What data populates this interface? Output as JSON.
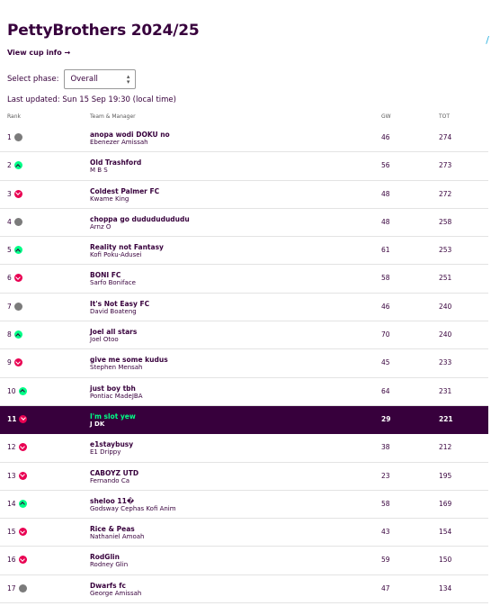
{
  "league": {
    "title": "PettyBrothers 2024/25",
    "cup_link": "View cup info →",
    "corner_mark": "/"
  },
  "phase": {
    "label": "Select phase:",
    "selected": "Overall",
    "arrows": "⌃⌄"
  },
  "last_updated": "Last updated: Sun 15 Sep 19:30 (local time)",
  "columns": {
    "rank": "Rank",
    "team": "Team & Manager",
    "gw": "GW",
    "tot": "TOT"
  },
  "colors": {
    "primary": "#37003c",
    "up": "#00ff87",
    "down": "#e90052",
    "same": "#7b7b7b"
  },
  "standings": [
    {
      "rank": "1",
      "move": "same",
      "team": "anopa wodi DOKU no",
      "manager": "Ebenezer Amissah",
      "gw": "46",
      "tot": "274",
      "highlight": false
    },
    {
      "rank": "2",
      "move": "up",
      "team": "Old Trashford",
      "manager": "M B S",
      "gw": "56",
      "tot": "273",
      "highlight": false
    },
    {
      "rank": "3",
      "move": "down",
      "team": "Coldest Palmer FC",
      "manager": "Kwame King",
      "gw": "48",
      "tot": "272",
      "highlight": false
    },
    {
      "rank": "4",
      "move": "same",
      "team": "choppa go dudududududu",
      "manager": "Arnz O",
      "gw": "48",
      "tot": "258",
      "highlight": false
    },
    {
      "rank": "5",
      "move": "up",
      "team": "Reality not Fantasy",
      "manager": "Kofi Poku-Adusei",
      "gw": "61",
      "tot": "253",
      "highlight": false
    },
    {
      "rank": "6",
      "move": "down",
      "team": "BONI FC",
      "manager": "Sarfo Boniface",
      "gw": "58",
      "tot": "251",
      "highlight": false
    },
    {
      "rank": "7",
      "move": "same",
      "team": "It's Not Easy FC",
      "manager": "David Boateng",
      "gw": "46",
      "tot": "240",
      "highlight": false
    },
    {
      "rank": "8",
      "move": "up",
      "team": "Joel all stars",
      "manager": "Joel Otoo",
      "gw": "70",
      "tot": "240",
      "highlight": false
    },
    {
      "rank": "9",
      "move": "down",
      "team": "give me some kudus",
      "manager": "Stephen Mensah",
      "gw": "45",
      "tot": "233",
      "highlight": false
    },
    {
      "rank": "10",
      "move": "up",
      "team": "just boy tbh",
      "manager": "Pontiac MadeJBA",
      "gw": "64",
      "tot": "231",
      "highlight": false
    },
    {
      "rank": "11",
      "move": "down",
      "team": "I'm slot yew",
      "manager": "J DK",
      "gw": "29",
      "tot": "221",
      "highlight": true
    },
    {
      "rank": "12",
      "move": "down",
      "team": "e1staybusy",
      "manager": "E1 Drippy",
      "gw": "38",
      "tot": "212",
      "highlight": false
    },
    {
      "rank": "13",
      "move": "down",
      "team": "CABOYZ UTD",
      "manager": "Fernando Ca",
      "gw": "23",
      "tot": "195",
      "highlight": false
    },
    {
      "rank": "14",
      "move": "up",
      "team": "sheloo 11�",
      "manager": "Godsway Cephas Kofi Anim",
      "gw": "58",
      "tot": "169",
      "highlight": false
    },
    {
      "rank": "15",
      "move": "down",
      "team": "Rice & Peas",
      "manager": "Nathaniel Amoah",
      "gw": "43",
      "tot": "154",
      "highlight": false
    },
    {
      "rank": "16",
      "move": "down",
      "team": "RodGlin",
      "manager": "Rodney Glin",
      "gw": "59",
      "tot": "150",
      "highlight": false
    },
    {
      "rank": "17",
      "move": "same",
      "team": "Dwarfs fc",
      "manager": "George Amissah",
      "gw": "47",
      "tot": "134",
      "highlight": false
    }
  ]
}
